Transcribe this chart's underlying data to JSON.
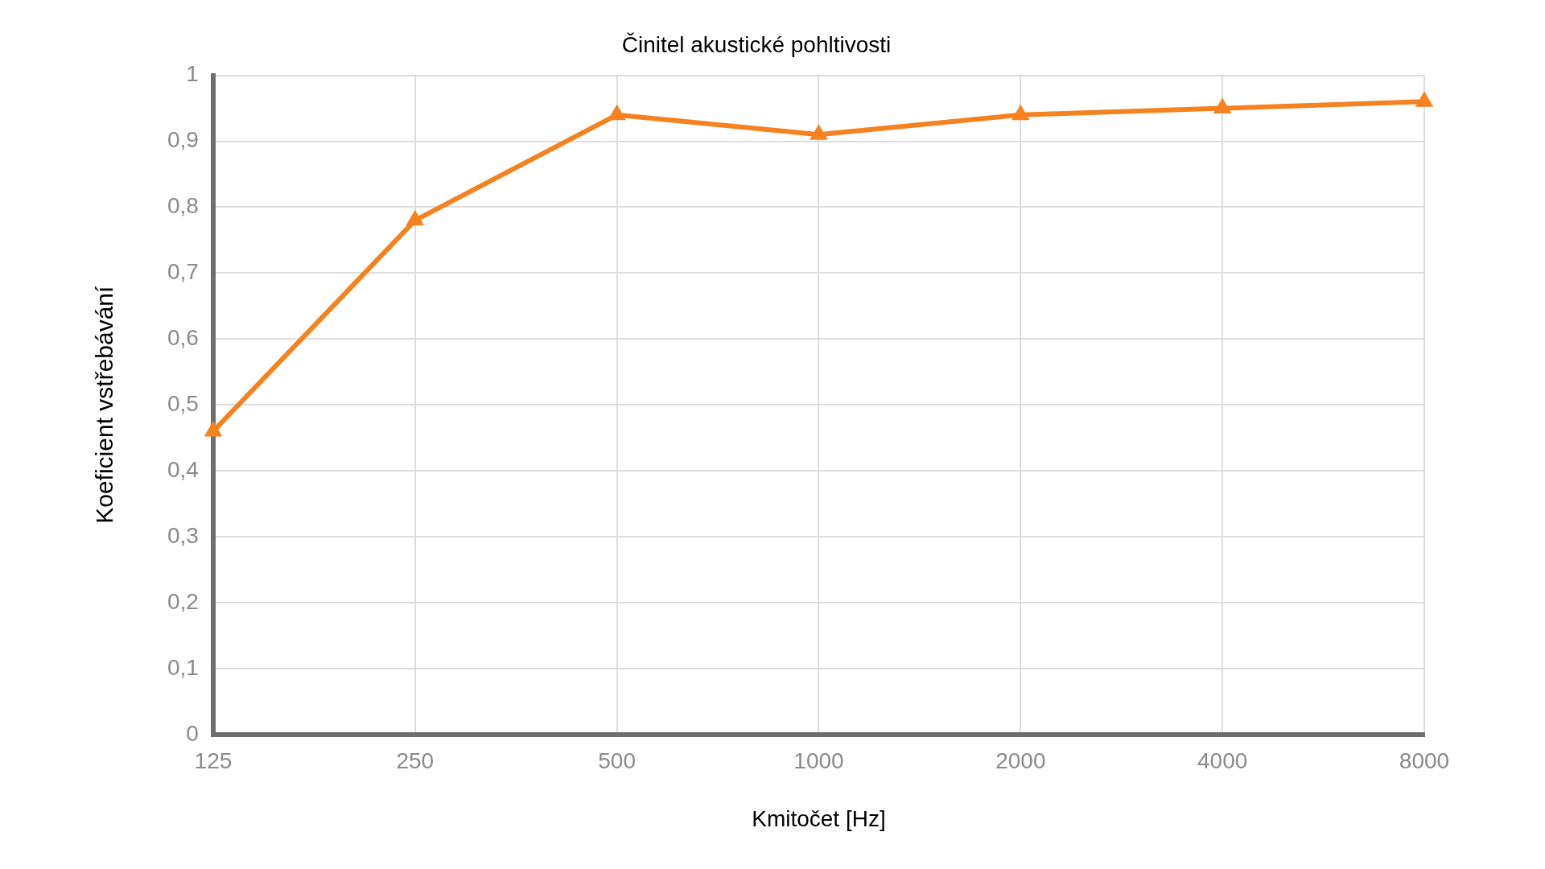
{
  "chart_data": {
    "type": "line",
    "title": "Činitel akustické pohltivosti",
    "xlabel": "Kmitočet [Hz]",
    "ylabel": "Koeficient vstřebávání",
    "categories": [
      "125",
      "250",
      "500",
      "1000",
      "2000",
      "4000",
      "8000"
    ],
    "series": [
      {
        "color": "#f5821f",
        "values": [
          0.46,
          0.78,
          0.94,
          0.91,
          0.94,
          0.95,
          0.96
        ]
      }
    ],
    "ylim": [
      0,
      1
    ],
    "yticks": [
      0,
      {
        "value": 0.1,
        "label": "0,1"
      },
      {
        "value": 0.2,
        "label": "0,2"
      },
      {
        "value": 0.3,
        "label": "0,3"
      },
      {
        "value": 0.4,
        "label": "0,4"
      },
      {
        "value": 0.5,
        "label": "0,5"
      },
      {
        "value": 0.6,
        "label": "0,6"
      },
      {
        "value": 0.7,
        "label": "0,7"
      },
      {
        "value": 0.8,
        "label": "0,8"
      },
      {
        "value": 0.9,
        "label": "0,9"
      },
      1
    ],
    "grid": true,
    "legend": false,
    "marker": "triangle",
    "line_style": "solid"
  }
}
